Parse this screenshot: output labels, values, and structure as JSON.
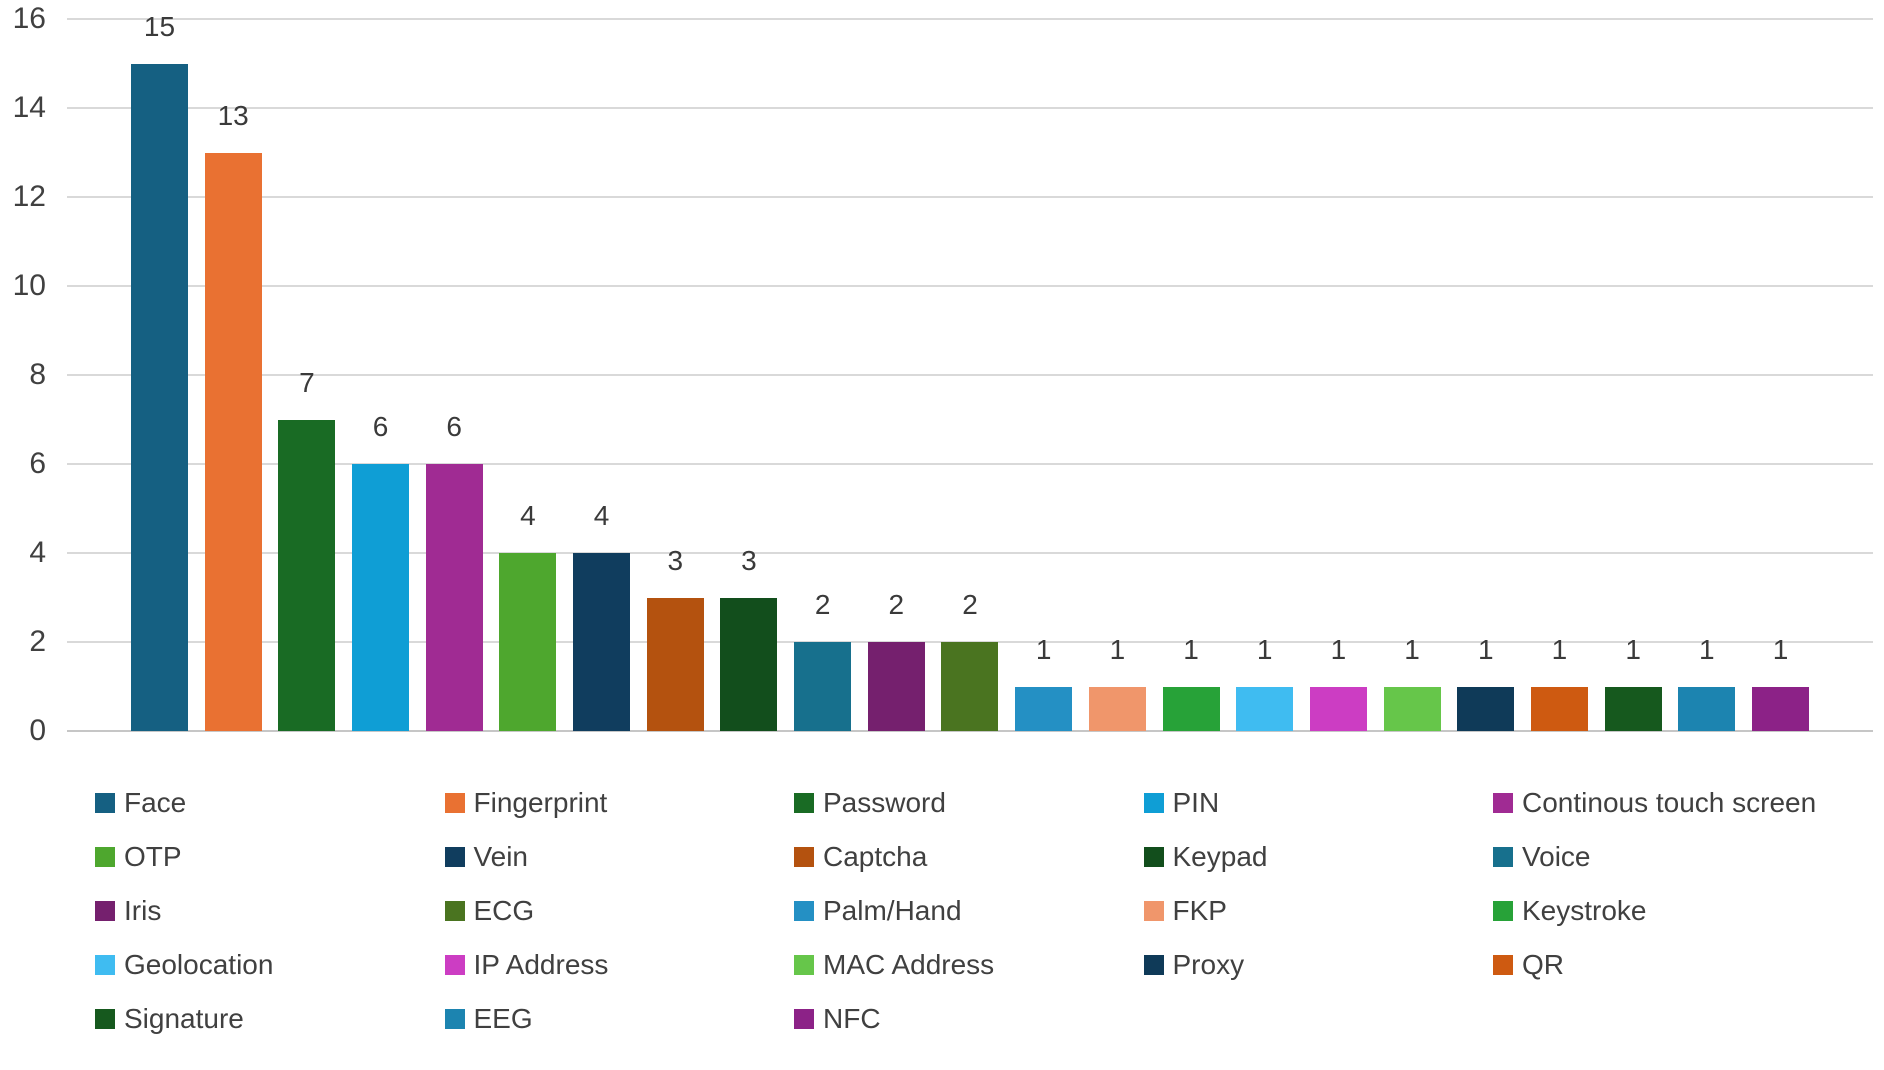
{
  "chart_data": {
    "type": "bar",
    "title": "",
    "xlabel": "",
    "ylabel": "",
    "ylim": [
      0,
      16
    ],
    "ytick_labels": [
      "0",
      "2",
      "4",
      "6",
      "8",
      "10",
      "12",
      "14",
      "16"
    ],
    "grid": "horizontal",
    "legend_position": "bottom",
    "data_labels": true,
    "categories": [
      "Face",
      "Fingerprint",
      "Password",
      "PIN",
      "Continous touch screen",
      "OTP",
      "Vein",
      "Captcha",
      "Keypad",
      "Voice",
      "Iris",
      "ECG",
      "Palm/Hand",
      "FKP",
      "Keystroke",
      "Geolocation",
      "IP Address",
      "MAC Address",
      "Proxy",
      "QR",
      "Signature",
      "EEG",
      "NFC"
    ],
    "values": [
      15,
      13,
      7,
      6,
      6,
      4,
      4,
      3,
      3,
      2,
      2,
      2,
      1,
      1,
      1,
      1,
      1,
      1,
      1,
      1,
      1,
      1,
      1
    ],
    "colors": [
      "#156082",
      "#E97132",
      "#196B24",
      "#0F9ED5",
      "#A02B93",
      "#4EA72E",
      "#103D5E",
      "#B4520F",
      "#124E1C",
      "#17708D",
      "#75206E",
      "#4A7420",
      "#2490C4",
      "#F0966B",
      "#27A238",
      "#3FBCF1",
      "#CC3DC3",
      "#66C64A",
      "#0F3A58",
      "#CE5A11",
      "#16591E",
      "#1C84B0",
      "#8C2287"
    ]
  },
  "style_colors": {
    "background": "#FFFFFF",
    "gridline": "#D9D9D9",
    "axis_line": "#C6C6C6",
    "tick_label": "#404040",
    "data_label": "#3A3A3A",
    "legend_label": "#404040"
  }
}
